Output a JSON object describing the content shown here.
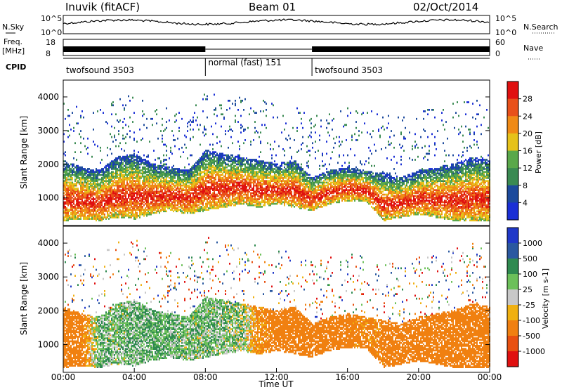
{
  "header": {
    "station": "Inuvik (fitACF)",
    "beam": "Beam 01",
    "date": "02/Oct/2014"
  },
  "noise_panel": {
    "left_label": "N.Sky",
    "right_label": "N.Search",
    "left_ticks": [
      "10^5",
      "10^0"
    ],
    "right_ticks": [
      "10^5",
      "10^0"
    ]
  },
  "freq_panel": {
    "left_label_1": "Freq.",
    "left_label_2": "[MHz]",
    "right_label": "Nave",
    "left_ticks": [
      "18",
      "8"
    ],
    "right_ticks": [
      "60",
      "0"
    ]
  },
  "cpid_panel": {
    "label": "CPID",
    "segments": [
      {
        "name": "twofsound 3503",
        "start_h": 0,
        "end_h": 8
      },
      {
        "name": "normal (fast) 151",
        "start_h": 8,
        "end_h": 14
      },
      {
        "name": "twofsound 3503",
        "start_h": 14,
        "end_h": 24
      }
    ]
  },
  "time_axis": {
    "label": "Time UT",
    "ticks": [
      "00:00",
      "04:00",
      "08:00",
      "12:00",
      "16:00",
      "20:00",
      "00:00"
    ]
  },
  "chart_data": [
    {
      "type": "heatmap",
      "panel": "power",
      "ylabel": "Slant Range [km]",
      "ylim": [
        180,
        4500
      ],
      "yticks": [
        1000,
        2000,
        3000,
        4000
      ],
      "colorbar_label": "Power [dB]",
      "colorbar_ticks": [
        "4",
        "8",
        "12",
        "16",
        "20",
        "24",
        "28"
      ],
      "colors": [
        "#1a2fd6",
        "#1c4a9c",
        "#3a8a52",
        "#5aa84a",
        "#e6c21a",
        "#f08a16",
        "#e8501a",
        "#e01010"
      ],
      "x_hours": [
        0,
        1,
        2,
        3,
        4,
        5,
        6,
        7,
        8,
        9,
        10,
        11,
        12,
        13,
        14,
        15,
        16,
        17,
        18,
        19,
        20,
        21,
        22,
        23,
        24
      ],
      "echo_band_km": [
        {
          "lo": 300,
          "hi": 2100
        },
        {
          "lo": 350,
          "hi": 1900
        },
        {
          "lo": 300,
          "hi": 1800
        },
        {
          "lo": 400,
          "hi": 2200
        },
        {
          "lo": 350,
          "hi": 2300
        },
        {
          "lo": 500,
          "hi": 2000
        },
        {
          "lo": 600,
          "hi": 1900
        },
        {
          "lo": 500,
          "hi": 1800
        },
        {
          "lo": 600,
          "hi": 2400
        },
        {
          "lo": 700,
          "hi": 2300
        },
        {
          "lo": 800,
          "hi": 2200
        },
        {
          "lo": 700,
          "hi": 2100
        },
        {
          "lo": 800,
          "hi": 2000
        },
        {
          "lo": 700,
          "hi": 2100
        },
        {
          "lo": 600,
          "hi": 1600
        },
        {
          "lo": 800,
          "hi": 1800
        },
        {
          "lo": 900,
          "hi": 1900
        },
        {
          "lo": 900,
          "hi": 1800
        },
        {
          "lo": 300,
          "hi": 1700
        },
        {
          "lo": 400,
          "hi": 1600
        },
        {
          "lo": 500,
          "hi": 1800
        },
        {
          "lo": 400,
          "hi": 1900
        },
        {
          "lo": 300,
          "hi": 2000
        },
        {
          "lo": 300,
          "hi": 2200
        },
        {
          "lo": 300,
          "hi": 2100
        }
      ]
    },
    {
      "type": "heatmap",
      "panel": "velocity",
      "ylabel": "Slant Range [km]",
      "ylim": [
        180,
        4500
      ],
      "yticks": [
        1000,
        2000,
        3000,
        4000
      ],
      "colorbar_label": "Velocity [m s-1]",
      "colorbar_ticks": [
        "1000",
        "500",
        "100",
        "25",
        "-25",
        "-100",
        "-500",
        "-1000"
      ],
      "colors": [
        "#2038c8",
        "#2a58a0",
        "#2f8a50",
        "#6cc05a",
        "#c8c8c8",
        "#f0b010",
        "#f08010",
        "#e85010",
        "#e01010"
      ],
      "x_hours": [
        0,
        1,
        2,
        3,
        4,
        5,
        6,
        7,
        8,
        9,
        10,
        11,
        12,
        13,
        14,
        15,
        16,
        17,
        18,
        19,
        20,
        21,
        22,
        23,
        24
      ],
      "dominant_velocity_ms": [
        -300,
        -200,
        80,
        60,
        80,
        90,
        80,
        60,
        70,
        60,
        50,
        -150,
        -200,
        -220,
        -250,
        -300,
        -200,
        -150,
        -200,
        -250,
        -300,
        -350,
        -400,
        -300,
        -350
      ]
    }
  ]
}
